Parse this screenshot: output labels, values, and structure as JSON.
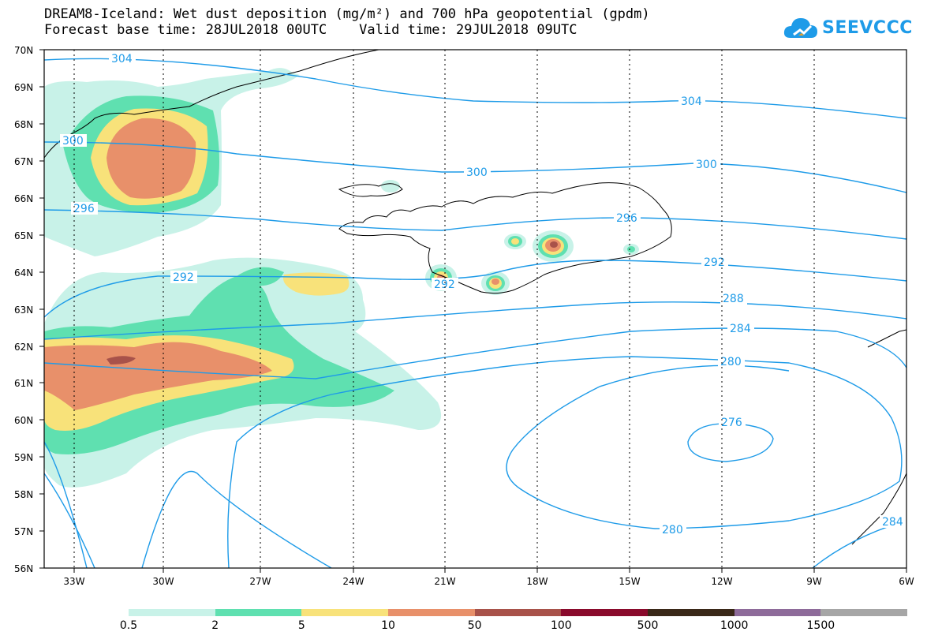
{
  "header": {
    "title_line1": "DREAM8-Iceland: Wet dust deposition (mg/m²) and 700 hPa geopotential (gpdm)",
    "title_line2": "Forecast base time: 28JUL2018 00UTC    Valid time: 29JUL2018 09UTC"
  },
  "logo": {
    "text": "SEEVCCC",
    "icon": "cloud-icon",
    "color": "#1e9be8"
  },
  "map": {
    "lat_labels": [
      "70N",
      "69N",
      "68N",
      "67N",
      "66N",
      "65N",
      "64N",
      "63N",
      "62N",
      "61N",
      "60N",
      "59N",
      "58N",
      "57N",
      "56N"
    ],
    "lon_labels": [
      "33W",
      "30W",
      "27W",
      "24W",
      "21W",
      "18W",
      "15W",
      "12W",
      "9W",
      "6W"
    ],
    "contour_color": "#1e9be8",
    "contour_labels": [
      "304",
      "304",
      "300",
      "300",
      "300",
      "296",
      "296",
      "292",
      "292",
      "292",
      "288",
      "284",
      "280",
      "276",
      "280",
      "284"
    ]
  },
  "legend": {
    "colors": [
      "#c8f2e8",
      "#5fe0b0",
      "#f8e27a",
      "#e8906a",
      "#a8524a",
      "#8a0a2c",
      "#3a2818",
      "#8e6b9a",
      "#a6a6a6"
    ],
    "labels": [
      "0.5",
      "2",
      "5",
      "10",
      "50",
      "100",
      "500",
      "1000",
      "1500"
    ]
  }
}
